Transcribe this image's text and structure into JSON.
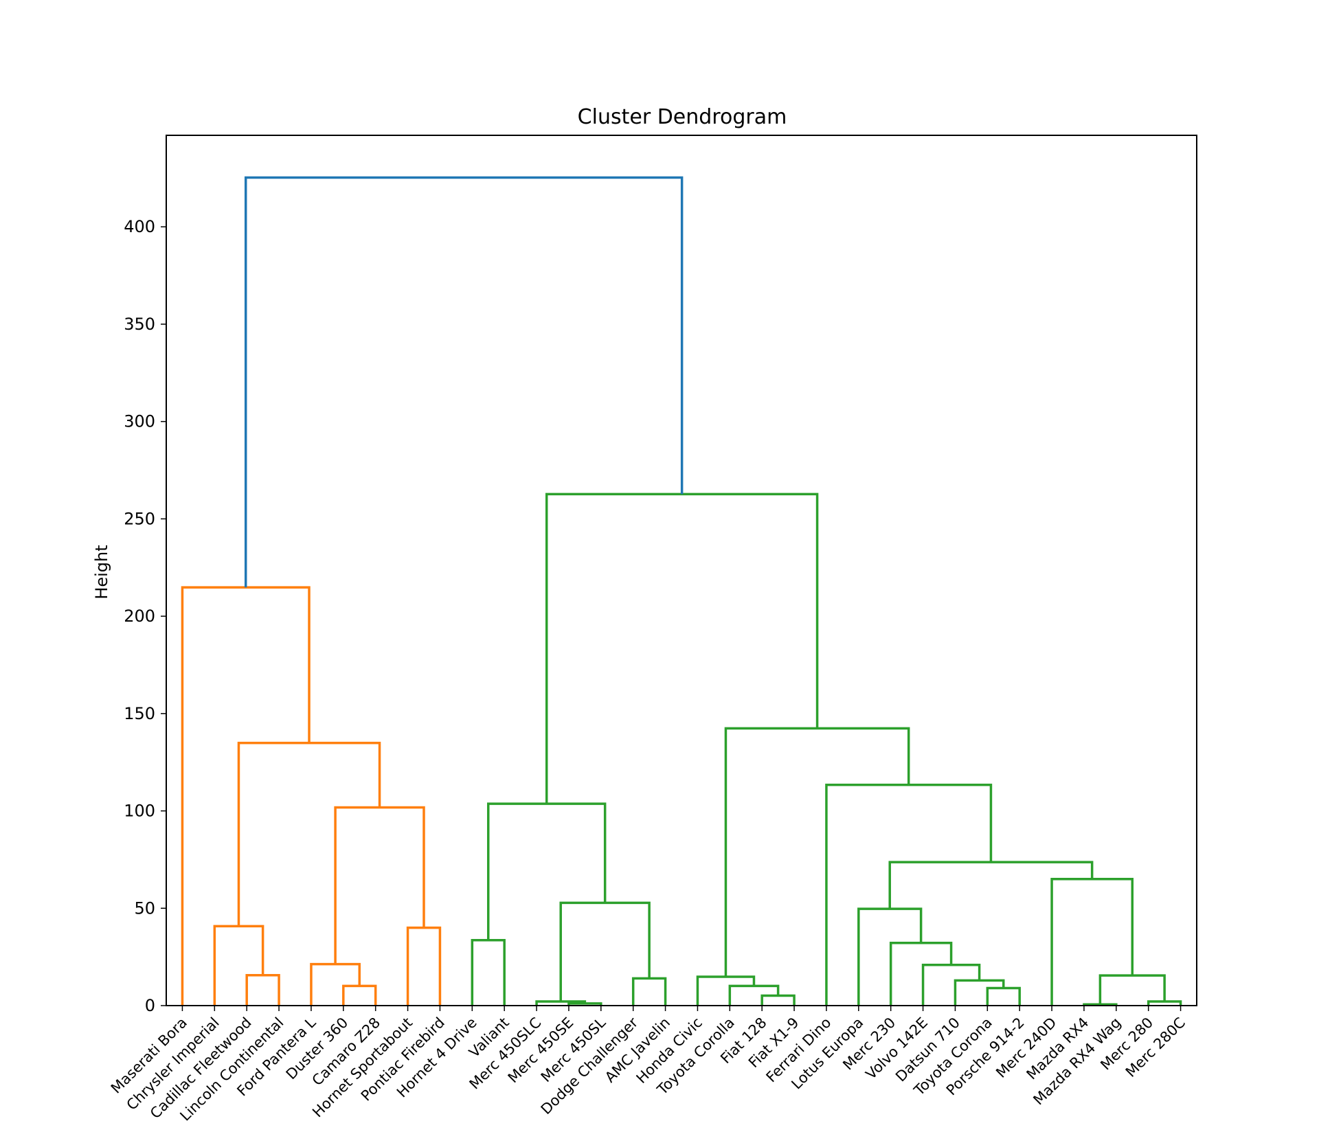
{
  "chart_data": {
    "type": "dendrogram",
    "title": "Cluster Dendrogram",
    "ylabel": "Height",
    "xlabel": "",
    "ylim": [
      0,
      447
    ],
    "yticks": [
      0,
      50,
      100,
      150,
      200,
      250,
      300,
      350,
      400
    ],
    "grid": false,
    "colors": {
      "root": "#1f77b4",
      "cluster_1": "#ff7f0e",
      "cluster_2": "#2ca02c"
    },
    "leaves": [
      "Maserati Bora",
      "Chrysler Imperial",
      "Cadillac Fleetwood",
      "Lincoln Continental",
      "Ford Pantera L",
      "Duster 360",
      "Camaro Z28",
      "Hornet Sportabout",
      "Pontiac Firebird",
      "Hornet 4 Drive",
      "Valiant",
      "Merc 450SLC",
      "Merc 450SE",
      "Merc 450SL",
      "Dodge Challenger",
      "AMC Javelin",
      "Honda Civic",
      "Toyota Corolla",
      "Fiat 128",
      "Fiat X1-9",
      "Ferrari Dino",
      "Lotus Europa",
      "Merc 230",
      "Volvo 142E",
      "Datsun 710",
      "Toyota Corona",
      "Porsche 914-2",
      "Merc 240D",
      "Mazda RX4",
      "Mazda RX4 Wag",
      "Merc 280",
      "Merc 280C"
    ],
    "merges": [
      {
        "id": "m1",
        "left": 2,
        "right": 3,
        "height": 15.6,
        "color": "cluster_1"
      },
      {
        "id": "m2",
        "left": 1,
        "right": "m1",
        "height": 40.8,
        "color": "cluster_1"
      },
      {
        "id": "m3",
        "left": 5,
        "right": 6,
        "height": 10.1,
        "color": "cluster_1"
      },
      {
        "id": "m4",
        "left": 4,
        "right": "m3",
        "height": 21.3,
        "color": "cluster_1"
      },
      {
        "id": "m5",
        "left": 7,
        "right": 8,
        "height": 40.0,
        "color": "cluster_1"
      },
      {
        "id": "m6",
        "left": "m4",
        "right": "m5",
        "height": 101.8,
        "color": "cluster_1"
      },
      {
        "id": "m7",
        "left": "m2",
        "right": "m6",
        "height": 134.9,
        "color": "cluster_1"
      },
      {
        "id": "m8",
        "left": 0,
        "right": "m7",
        "height": 214.8,
        "color": "cluster_1"
      },
      {
        "id": "m9",
        "left": 9,
        "right": 10,
        "height": 33.6,
        "color": "cluster_2"
      },
      {
        "id": "m10",
        "left": 12,
        "right": 13,
        "height": 1.1,
        "color": "cluster_2"
      },
      {
        "id": "m11",
        "left": 11,
        "right": "m10",
        "height": 2.1,
        "color": "cluster_2"
      },
      {
        "id": "m12",
        "left": 14,
        "right": 15,
        "height": 14.0,
        "color": "cluster_2"
      },
      {
        "id": "m13",
        "left": "m11",
        "right": "m12",
        "height": 52.8,
        "color": "cluster_2"
      },
      {
        "id": "m14",
        "left": "m9",
        "right": "m13",
        "height": 103.7,
        "color": "cluster_2"
      },
      {
        "id": "m15",
        "left": 18,
        "right": 19,
        "height": 5.1,
        "color": "cluster_2"
      },
      {
        "id": "m16",
        "left": 17,
        "right": "m15",
        "height": 10.1,
        "color": "cluster_2"
      },
      {
        "id": "m17",
        "left": 16,
        "right": "m16",
        "height": 14.8,
        "color": "cluster_2"
      },
      {
        "id": "m18",
        "left": 25,
        "right": 26,
        "height": 9.0,
        "color": "cluster_2"
      },
      {
        "id": "m19",
        "left": 24,
        "right": "m18",
        "height": 12.9,
        "color": "cluster_2"
      },
      {
        "id": "m20",
        "left": 23,
        "right": "m19",
        "height": 20.9,
        "color": "cluster_2"
      },
      {
        "id": "m21",
        "left": 22,
        "right": "m20",
        "height": 32.2,
        "color": "cluster_2"
      },
      {
        "id": "m22",
        "left": 21,
        "right": "m21",
        "height": 49.7,
        "color": "cluster_2"
      },
      {
        "id": "m23",
        "left": 28,
        "right": 29,
        "height": 0.6,
        "color": "cluster_2"
      },
      {
        "id": "m24",
        "left": 30,
        "right": 31,
        "height": 2.1,
        "color": "cluster_2"
      },
      {
        "id": "m25",
        "left": "m23",
        "right": "m24",
        "height": 15.5,
        "color": "cluster_2"
      },
      {
        "id": "m26",
        "left": 27,
        "right": "m25",
        "height": 65.0,
        "color": "cluster_2"
      },
      {
        "id": "m27",
        "left": "m22",
        "right": "m26",
        "height": 73.7,
        "color": "cluster_2"
      },
      {
        "id": "m28",
        "left": 20,
        "right": "m27",
        "height": 113.4,
        "color": "cluster_2"
      },
      {
        "id": "m29",
        "left": "m17",
        "right": "m28",
        "height": 142.4,
        "color": "cluster_2"
      },
      {
        "id": "m30",
        "left": "m14",
        "right": "m29",
        "height": 262.7,
        "color": "cluster_2"
      },
      {
        "id": "m31",
        "left": "m8",
        "right": "m30",
        "height": 425.3,
        "color": "root"
      }
    ]
  }
}
